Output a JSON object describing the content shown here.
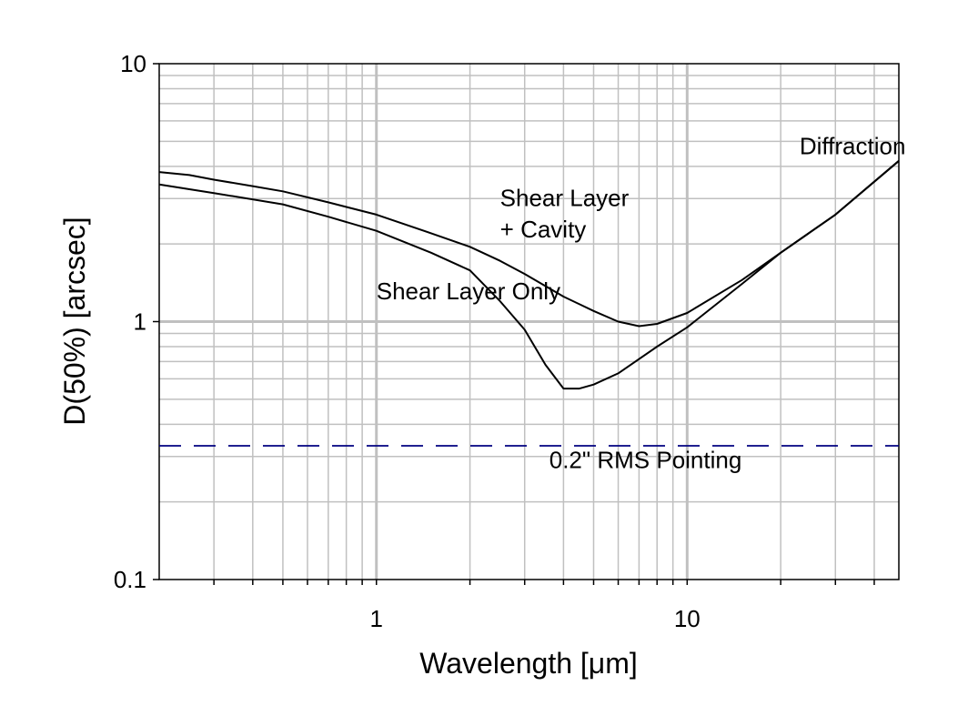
{
  "chart_data": {
    "type": "line",
    "title": "",
    "xlabel": "Wavelength [μm]",
    "ylabel": "D(50%) [arcsec]",
    "x_scale": "log",
    "y_scale": "log",
    "xlim": [
      0.2,
      48
    ],
    "ylim": [
      0.1,
      10
    ],
    "x_ticks": [
      {
        "value": 1,
        "label": "1"
      },
      {
        "value": 10,
        "label": "10"
      }
    ],
    "y_ticks": [
      {
        "value": 0.1,
        "label": "0.1"
      },
      {
        "value": 1,
        "label": "1"
      },
      {
        "value": 10,
        "label": "10"
      }
    ],
    "grid": true,
    "legend": "none",
    "series": [
      {
        "style": "solid",
        "color": "#000000",
        "x": [
          0.2,
          0.25,
          0.3,
          0.4,
          0.5,
          0.7,
          1.0,
          1.5,
          2.0,
          2.5,
          3.0,
          4.0,
          5.0,
          6.0,
          7.0,
          8.0,
          10,
          15,
          20,
          30,
          48
        ],
        "y": [
          3.8,
          3.7,
          3.55,
          3.35,
          3.2,
          2.9,
          2.6,
          2.2,
          1.95,
          1.72,
          1.53,
          1.25,
          1.1,
          1.0,
          0.96,
          0.98,
          1.08,
          1.45,
          1.85,
          2.6,
          4.2
        ]
      },
      {
        "style": "solid",
        "color": "#000000",
        "x": [
          0.2,
          0.3,
          0.5,
          0.7,
          1.0,
          1.5,
          2.0,
          2.5,
          3.0,
          3.5,
          4.0,
          4.5,
          5.0,
          6.0,
          8.0,
          10,
          15,
          20,
          30,
          48
        ],
        "y": [
          3.4,
          3.15,
          2.85,
          2.55,
          2.25,
          1.85,
          1.58,
          1.2,
          0.93,
          0.68,
          0.55,
          0.55,
          0.57,
          0.63,
          0.8,
          0.95,
          1.4,
          1.85,
          2.6,
          4.2
        ]
      },
      {
        "style": "dashed",
        "color": "#000080",
        "x": [
          0.2,
          48
        ],
        "y": [
          0.33,
          0.33
        ]
      }
    ],
    "annotations": [
      {
        "text": "Diffraction",
        "x": 23,
        "y": 4.45
      },
      {
        "text": "Shear Layer",
        "x": 2.5,
        "y": 2.8
      },
      {
        "text": "+ Cavity",
        "x": 2.5,
        "y": 2.12
      },
      {
        "text": "Shear Layer Only",
        "x": 1.0,
        "y": 1.22
      },
      {
        "text": "0.2\" RMS Pointing",
        "x": 3.6,
        "y": 0.27
      }
    ]
  }
}
